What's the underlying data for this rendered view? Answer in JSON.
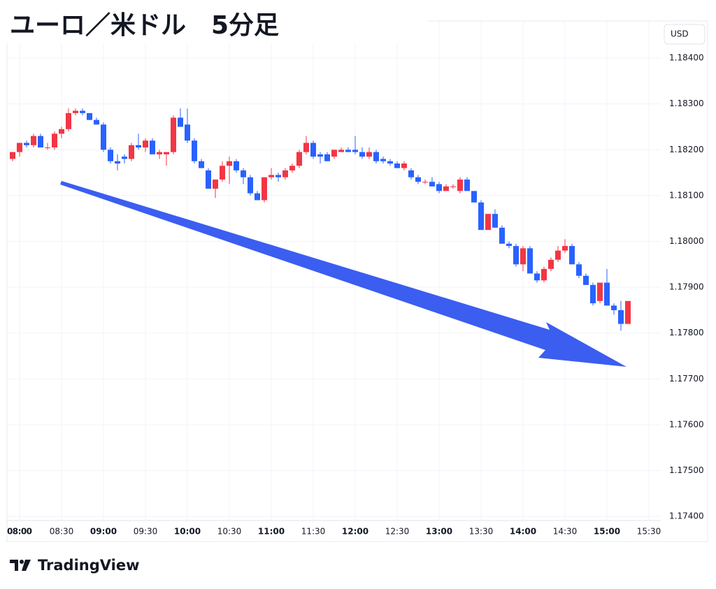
{
  "chart_data": {
    "type": "candlestick",
    "title": "ユーロ／米ドル　5分足",
    "currency": "USD",
    "source": "TradingView",
    "up_color": "#f23645",
    "down_color": "#2962ff",
    "grid": true,
    "xlim": [
      471,
      938.5
    ],
    "ylim": [
      1.17391,
      1.18481
    ],
    "xticks": [
      {
        "value": 480,
        "label": "08:00"
      },
      {
        "value": 510,
        "label": "08:30"
      },
      {
        "value": 540,
        "label": "09:00"
      },
      {
        "value": 570,
        "label": "09:30"
      },
      {
        "value": 600,
        "label": "10:00"
      },
      {
        "value": 630,
        "label": "10:30"
      },
      {
        "value": 660,
        "label": "11:00"
      },
      {
        "value": 690,
        "label": "11:30"
      },
      {
        "value": 720,
        "label": "12:00"
      },
      {
        "value": 750,
        "label": "12:30"
      },
      {
        "value": 780,
        "label": "13:00"
      },
      {
        "value": 810,
        "label": "13:30"
      },
      {
        "value": 840,
        "label": "14:00"
      },
      {
        "value": 870,
        "label": "14:30"
      },
      {
        "value": 900,
        "label": "15:00"
      },
      {
        "value": 930,
        "label": "15:30"
      }
    ],
    "yticks": [
      {
        "value": 1.184,
        "label": "1.18400"
      },
      {
        "value": 1.183,
        "label": "1.18300"
      },
      {
        "value": 1.182,
        "label": "1.18200"
      },
      {
        "value": 1.181,
        "label": "1.18100"
      },
      {
        "value": 1.18,
        "label": "1.18000"
      },
      {
        "value": 1.179,
        "label": "1.17900"
      },
      {
        "value": 1.178,
        "label": "1.17800"
      },
      {
        "value": 1.177,
        "label": "1.17700"
      },
      {
        "value": 1.176,
        "label": "1.17600"
      },
      {
        "value": 1.175,
        "label": "1.17500"
      },
      {
        "value": 1.174,
        "label": "1.17400"
      }
    ],
    "candles": {
      "x": [
        475,
        480,
        485,
        490,
        495,
        500,
        505,
        510,
        515,
        520,
        525,
        530,
        535,
        540,
        545,
        550,
        555,
        560,
        565,
        570,
        575,
        580,
        585,
        590,
        595,
        600,
        605,
        610,
        615,
        620,
        625,
        630,
        635,
        640,
        645,
        650,
        655,
        660,
        665,
        670,
        675,
        680,
        685,
        690,
        695,
        700,
        705,
        710,
        715,
        720,
        725,
        730,
        735,
        740,
        745,
        750,
        755,
        760,
        765,
        770,
        775,
        780,
        785,
        790,
        795,
        800,
        805,
        810,
        815,
        820,
        825,
        830,
        835,
        840,
        845,
        850,
        855,
        860,
        865,
        870,
        875,
        880,
        885,
        890,
        895,
        900,
        905,
        910,
        915
      ],
      "open": [
        1.1818,
        1.18195,
        1.18215,
        1.1821,
        1.1823,
        1.18205,
        1.18205,
        1.18235,
        1.18245,
        1.1828,
        1.18285,
        1.1828,
        1.18265,
        1.18255,
        1.182,
        1.18175,
        1.18185,
        1.1818,
        1.1821,
        1.18205,
        1.1822,
        1.1819,
        1.1819,
        1.18195,
        1.1827,
        1.18255,
        1.1822,
        1.18175,
        1.18155,
        1.18115,
        1.18135,
        1.18165,
        1.18175,
        1.18155,
        1.1814,
        1.18105,
        1.1809,
        1.1814,
        1.18145,
        1.1814,
        1.18155,
        1.18165,
        1.18195,
        1.18215,
        1.1819,
        1.1819,
        1.18185,
        1.18195,
        1.182,
        1.182,
        1.18195,
        1.18185,
        1.18195,
        1.1818,
        1.18175,
        1.1817,
        1.1816,
        1.18155,
        1.1814,
        1.1813,
        1.1813,
        1.18125,
        1.1811,
        1.1812,
        1.1811,
        1.18135,
        1.1811,
        1.18085,
        1.18025,
        1.1806,
        1.1803,
        1.17995,
        1.1799,
        1.1795,
        1.17985,
        1.1793,
        1.17915,
        1.1794,
        1.1796,
        1.1798,
        1.1799,
        1.1795,
        1.17925,
        1.17905,
        1.1787,
        1.1791,
        1.1786,
        1.1785,
        1.1782
      ],
      "high": [
        1.18195,
        1.18215,
        1.1822,
        1.18235,
        1.18235,
        1.18215,
        1.1824,
        1.1825,
        1.1829,
        1.1829,
        1.1829,
        1.1828,
        1.1827,
        1.1826,
        1.18205,
        1.1819,
        1.1819,
        1.18215,
        1.18235,
        1.18225,
        1.18225,
        1.182,
        1.18195,
        1.18275,
        1.1829,
        1.1829,
        1.18225,
        1.1818,
        1.1816,
        1.18135,
        1.18175,
        1.18185,
        1.1818,
        1.1816,
        1.18145,
        1.1811,
        1.1814,
        1.1816,
        1.1815,
        1.1816,
        1.1817,
        1.182,
        1.1823,
        1.1822,
        1.18195,
        1.18195,
        1.182,
        1.18205,
        1.18205,
        1.1823,
        1.18205,
        1.18205,
        1.182,
        1.18185,
        1.1818,
        1.18175,
        1.18175,
        1.1816,
        1.18145,
        1.18135,
        1.1814,
        1.1813,
        1.18125,
        1.18125,
        1.1814,
        1.1814,
        1.1811,
        1.1809,
        1.1806,
        1.1807,
        1.18035,
        1.18,
        1.17995,
        1.1799,
        1.1799,
        1.17935,
        1.17945,
        1.17965,
        1.1799,
        1.18005,
        1.17995,
        1.17955,
        1.1793,
        1.1791,
        1.1791,
        1.1794,
        1.17865,
        1.1787,
        1.1787
      ],
      "low": [
        1.18175,
        1.18185,
        1.18205,
        1.18205,
        1.18205,
        1.182,
        1.182,
        1.18225,
        1.1824,
        1.18275,
        1.18275,
        1.18265,
        1.18255,
        1.18195,
        1.1817,
        1.18155,
        1.1817,
        1.18175,
        1.182,
        1.18195,
        1.1819,
        1.1818,
        1.18165,
        1.1819,
        1.1825,
        1.18215,
        1.1817,
        1.1816,
        1.18115,
        1.18095,
        1.1813,
        1.18125,
        1.1815,
        1.18125,
        1.181,
        1.1809,
        1.18085,
        1.18135,
        1.1813,
        1.18135,
        1.1815,
        1.1816,
        1.1819,
        1.1818,
        1.1817,
        1.18175,
        1.1818,
        1.18195,
        1.18195,
        1.1819,
        1.1818,
        1.1818,
        1.1817,
        1.1817,
        1.18165,
        1.1816,
        1.18155,
        1.18135,
        1.18125,
        1.18125,
        1.1812,
        1.18105,
        1.1811,
        1.18115,
        1.18105,
        1.1811,
        1.18085,
        1.18025,
        1.18025,
        1.1803,
        1.17995,
        1.17985,
        1.17945,
        1.17935,
        1.1793,
        1.1791,
        1.1791,
        1.17935,
        1.17955,
        1.17975,
        1.1795,
        1.1792,
        1.17905,
        1.1786,
        1.17865,
        1.1786,
        1.1784,
        1.17805,
        1.1782
      ],
      "close": [
        1.18195,
        1.18215,
        1.1821,
        1.1823,
        1.18205,
        1.18205,
        1.18235,
        1.18245,
        1.1828,
        1.18285,
        1.1828,
        1.18265,
        1.18255,
        1.182,
        1.18175,
        1.1817,
        1.1818,
        1.1821,
        1.18205,
        1.1822,
        1.1819,
        1.18195,
        1.18195,
        1.1827,
        1.1825,
        1.1822,
        1.18175,
        1.1816,
        1.18115,
        1.18135,
        1.18165,
        1.18175,
        1.18155,
        1.1814,
        1.18105,
        1.1809,
        1.1814,
        1.18145,
        1.1814,
        1.18155,
        1.18165,
        1.18195,
        1.18215,
        1.18185,
        1.18185,
        1.18175,
        1.182,
        1.182,
        1.18195,
        1.18195,
        1.18185,
        1.18195,
        1.18175,
        1.18175,
        1.1817,
        1.1816,
        1.1817,
        1.1814,
        1.1813,
        1.1813,
        1.1812,
        1.1811,
        1.1812,
        1.1812,
        1.18135,
        1.1811,
        1.18085,
        1.18025,
        1.1806,
        1.1803,
        1.17995,
        1.1799,
        1.1795,
        1.17985,
        1.1793,
        1.17915,
        1.1794,
        1.1796,
        1.1798,
        1.1799,
        1.1795,
        1.17925,
        1.17905,
        1.17865,
        1.1791,
        1.1786,
        1.1785,
        1.1782,
        1.1787
      ]
    }
  }
}
